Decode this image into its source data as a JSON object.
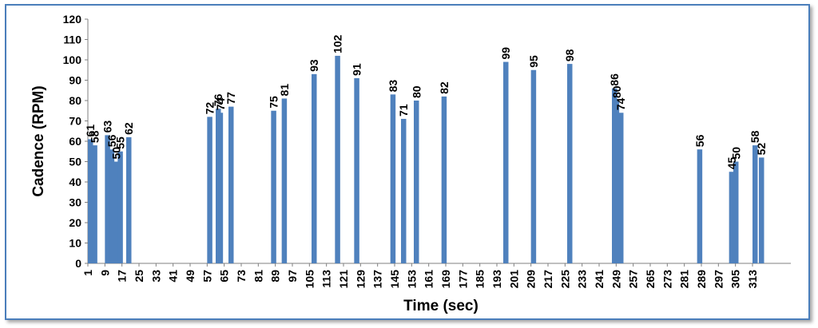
{
  "chart_data": {
    "type": "bar",
    "title": "",
    "xlabel": "Time (sec)",
    "ylabel": "Cadence (RPM)",
    "ylim": [
      0,
      120
    ],
    "yticks": [
      0,
      10,
      20,
      30,
      40,
      50,
      60,
      70,
      80,
      90,
      100,
      110,
      120
    ],
    "x_ticks": [
      1,
      9,
      17,
      25,
      33,
      41,
      49,
      57,
      65,
      73,
      81,
      89,
      97,
      105,
      113,
      121,
      129,
      137,
      145,
      153,
      161,
      169,
      177,
      185,
      193,
      201,
      209,
      217,
      225,
      233,
      241,
      249,
      257,
      265,
      273,
      281,
      289,
      297,
      305,
      313
    ],
    "x_range": [
      1,
      316
    ],
    "grid": false,
    "bar_color": "#4f81bd",
    "points": [
      {
        "x": 1,
        "y": 61
      },
      {
        "x": 3,
        "y": 58
      },
      {
        "x": 9,
        "y": 63
      },
      {
        "x": 11,
        "y": 56
      },
      {
        "x": 13,
        "y": 50
      },
      {
        "x": 15,
        "y": 55
      },
      {
        "x": 19,
        "y": 62
      },
      {
        "x": 57,
        "y": 72
      },
      {
        "x": 61,
        "y": 76
      },
      {
        "x": 62,
        "y": 74
      },
      {
        "x": 67,
        "y": 77
      },
      {
        "x": 87,
        "y": 75
      },
      {
        "x": 92,
        "y": 81
      },
      {
        "x": 106,
        "y": 93
      },
      {
        "x": 117,
        "y": 102
      },
      {
        "x": 126,
        "y": 91
      },
      {
        "x": 143,
        "y": 83
      },
      {
        "x": 148,
        "y": 71
      },
      {
        "x": 154,
        "y": 80
      },
      {
        "x": 167,
        "y": 82
      },
      {
        "x": 196,
        "y": 99
      },
      {
        "x": 209,
        "y": 95
      },
      {
        "x": 226,
        "y": 98
      },
      {
        "x": 247,
        "y": 86
      },
      {
        "x": 248,
        "y": 80
      },
      {
        "x": 250,
        "y": 74
      },
      {
        "x": 287,
        "y": 56
      },
      {
        "x": 302,
        "y": 45
      },
      {
        "x": 304,
        "y": 50
      },
      {
        "x": 313,
        "y": 58
      },
      {
        "x": 316,
        "y": 52
      }
    ]
  }
}
